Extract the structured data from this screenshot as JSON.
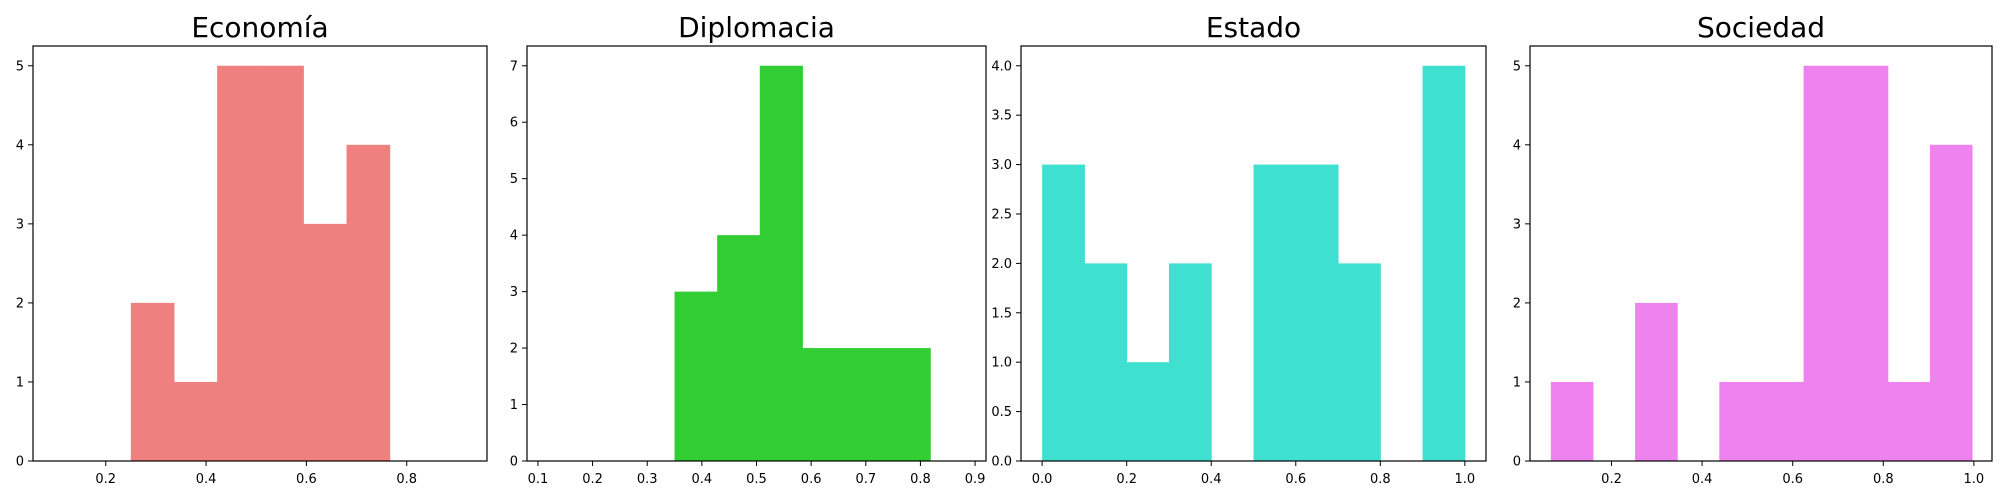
{
  "chart_data": [
    {
      "type": "bar",
      "title": "Economía",
      "color": "#f08080",
      "bins": [
        [
          0.25,
          0.336,
          2
        ],
        [
          0.336,
          0.422,
          1
        ],
        [
          0.422,
          0.508,
          5
        ],
        [
          0.508,
          0.594,
          5
        ],
        [
          0.594,
          0.68,
          3
        ],
        [
          0.68,
          0.766,
          4
        ]
      ],
      "xlim": [
        0.055,
        0.96
      ],
      "ylim": [
        0,
        5.25
      ],
      "xticks": [
        0.2,
        0.4,
        0.6,
        0.8
      ],
      "xtick_labels": [
        "0.2",
        "0.4",
        "0.6",
        "0.8"
      ],
      "yticks": [
        0,
        1,
        2,
        3,
        4,
        5
      ],
      "ytick_labels": [
        "0",
        "1",
        "2",
        "3",
        "4",
        "5"
      ],
      "xlabel": "",
      "ylabel": ""
    },
    {
      "type": "bar",
      "title": "Diplomacia",
      "color": "#32cd32",
      "bins": [
        [
          0.35,
          0.428,
          3
        ],
        [
          0.428,
          0.506,
          4
        ],
        [
          0.506,
          0.584,
          7
        ],
        [
          0.584,
          0.662,
          2
        ],
        [
          0.662,
          0.74,
          2
        ],
        [
          0.74,
          0.818,
          2
        ]
      ],
      "xlim": [
        0.08,
        0.92
      ],
      "ylim": [
        0,
        7.35
      ],
      "xticks": [
        0.1,
        0.2,
        0.3,
        0.4,
        0.5,
        0.6,
        0.7,
        0.8,
        0.9
      ],
      "xtick_labels": [
        "0.1",
        "0.2",
        "0.3",
        "0.4",
        "0.5",
        "0.6",
        "0.7",
        "0.8",
        "0.9"
      ],
      "yticks": [
        0,
        1,
        2,
        3,
        4,
        5,
        6,
        7
      ],
      "ytick_labels": [
        "0",
        "1",
        "2",
        "3",
        "4",
        "5",
        "6",
        "7"
      ],
      "xlabel": "",
      "ylabel": ""
    },
    {
      "type": "bar",
      "title": "Estado",
      "color": "#40e0d0",
      "bins": [
        [
          0.0,
          0.1,
          3
        ],
        [
          0.1,
          0.2,
          2
        ],
        [
          0.2,
          0.3,
          1
        ],
        [
          0.3,
          0.4,
          2
        ],
        [
          0.4,
          0.5,
          0
        ],
        [
          0.5,
          0.6,
          3
        ],
        [
          0.6,
          0.7,
          3
        ],
        [
          0.7,
          0.8,
          2
        ],
        [
          0.8,
          0.9,
          0
        ],
        [
          0.9,
          1.0,
          4
        ]
      ],
      "xlim": [
        -0.05,
        1.05
      ],
      "ylim": [
        0,
        4.2
      ],
      "xticks": [
        0.0,
        0.2,
        0.4,
        0.6,
        0.8,
        1.0
      ],
      "xtick_labels": [
        "0.0",
        "0.2",
        "0.4",
        "0.6",
        "0.8",
        "1.0"
      ],
      "yticks": [
        0,
        0.5,
        1.0,
        1.5,
        2.0,
        2.5,
        3.0,
        3.5,
        4.0
      ],
      "ytick_labels": [
        "0.0",
        "0.5",
        "1.0",
        "1.5",
        "2.0",
        "2.5",
        "3.0",
        "3.5",
        "4.0"
      ],
      "xlabel": "",
      "ylabel": ""
    },
    {
      "type": "bar",
      "title": "Sociedad",
      "color": "#ee82ee",
      "bins": [
        [
          0.066,
          0.159,
          1
        ],
        [
          0.159,
          0.252,
          0
        ],
        [
          0.252,
          0.345,
          2
        ],
        [
          0.345,
          0.438,
          0
        ],
        [
          0.438,
          0.531,
          1
        ],
        [
          0.531,
          0.624,
          1
        ],
        [
          0.624,
          0.717,
          5
        ],
        [
          0.717,
          0.81,
          5
        ],
        [
          0.81,
          0.903,
          1
        ],
        [
          0.903,
          0.996,
          4
        ]
      ],
      "xlim": [
        0.02,
        1.04
      ],
      "ylim": [
        0,
        5.25
      ],
      "xticks": [
        0.2,
        0.4,
        0.6,
        0.8,
        1.0
      ],
      "xtick_labels": [
        "0.2",
        "0.4",
        "0.6",
        "0.8",
        "1.0"
      ],
      "yticks": [
        0,
        1,
        2,
        3,
        4,
        5
      ],
      "ytick_labels": [
        "0",
        "1",
        "2",
        "3",
        "4",
        "5"
      ],
      "xlabel": "",
      "ylabel": ""
    }
  ]
}
